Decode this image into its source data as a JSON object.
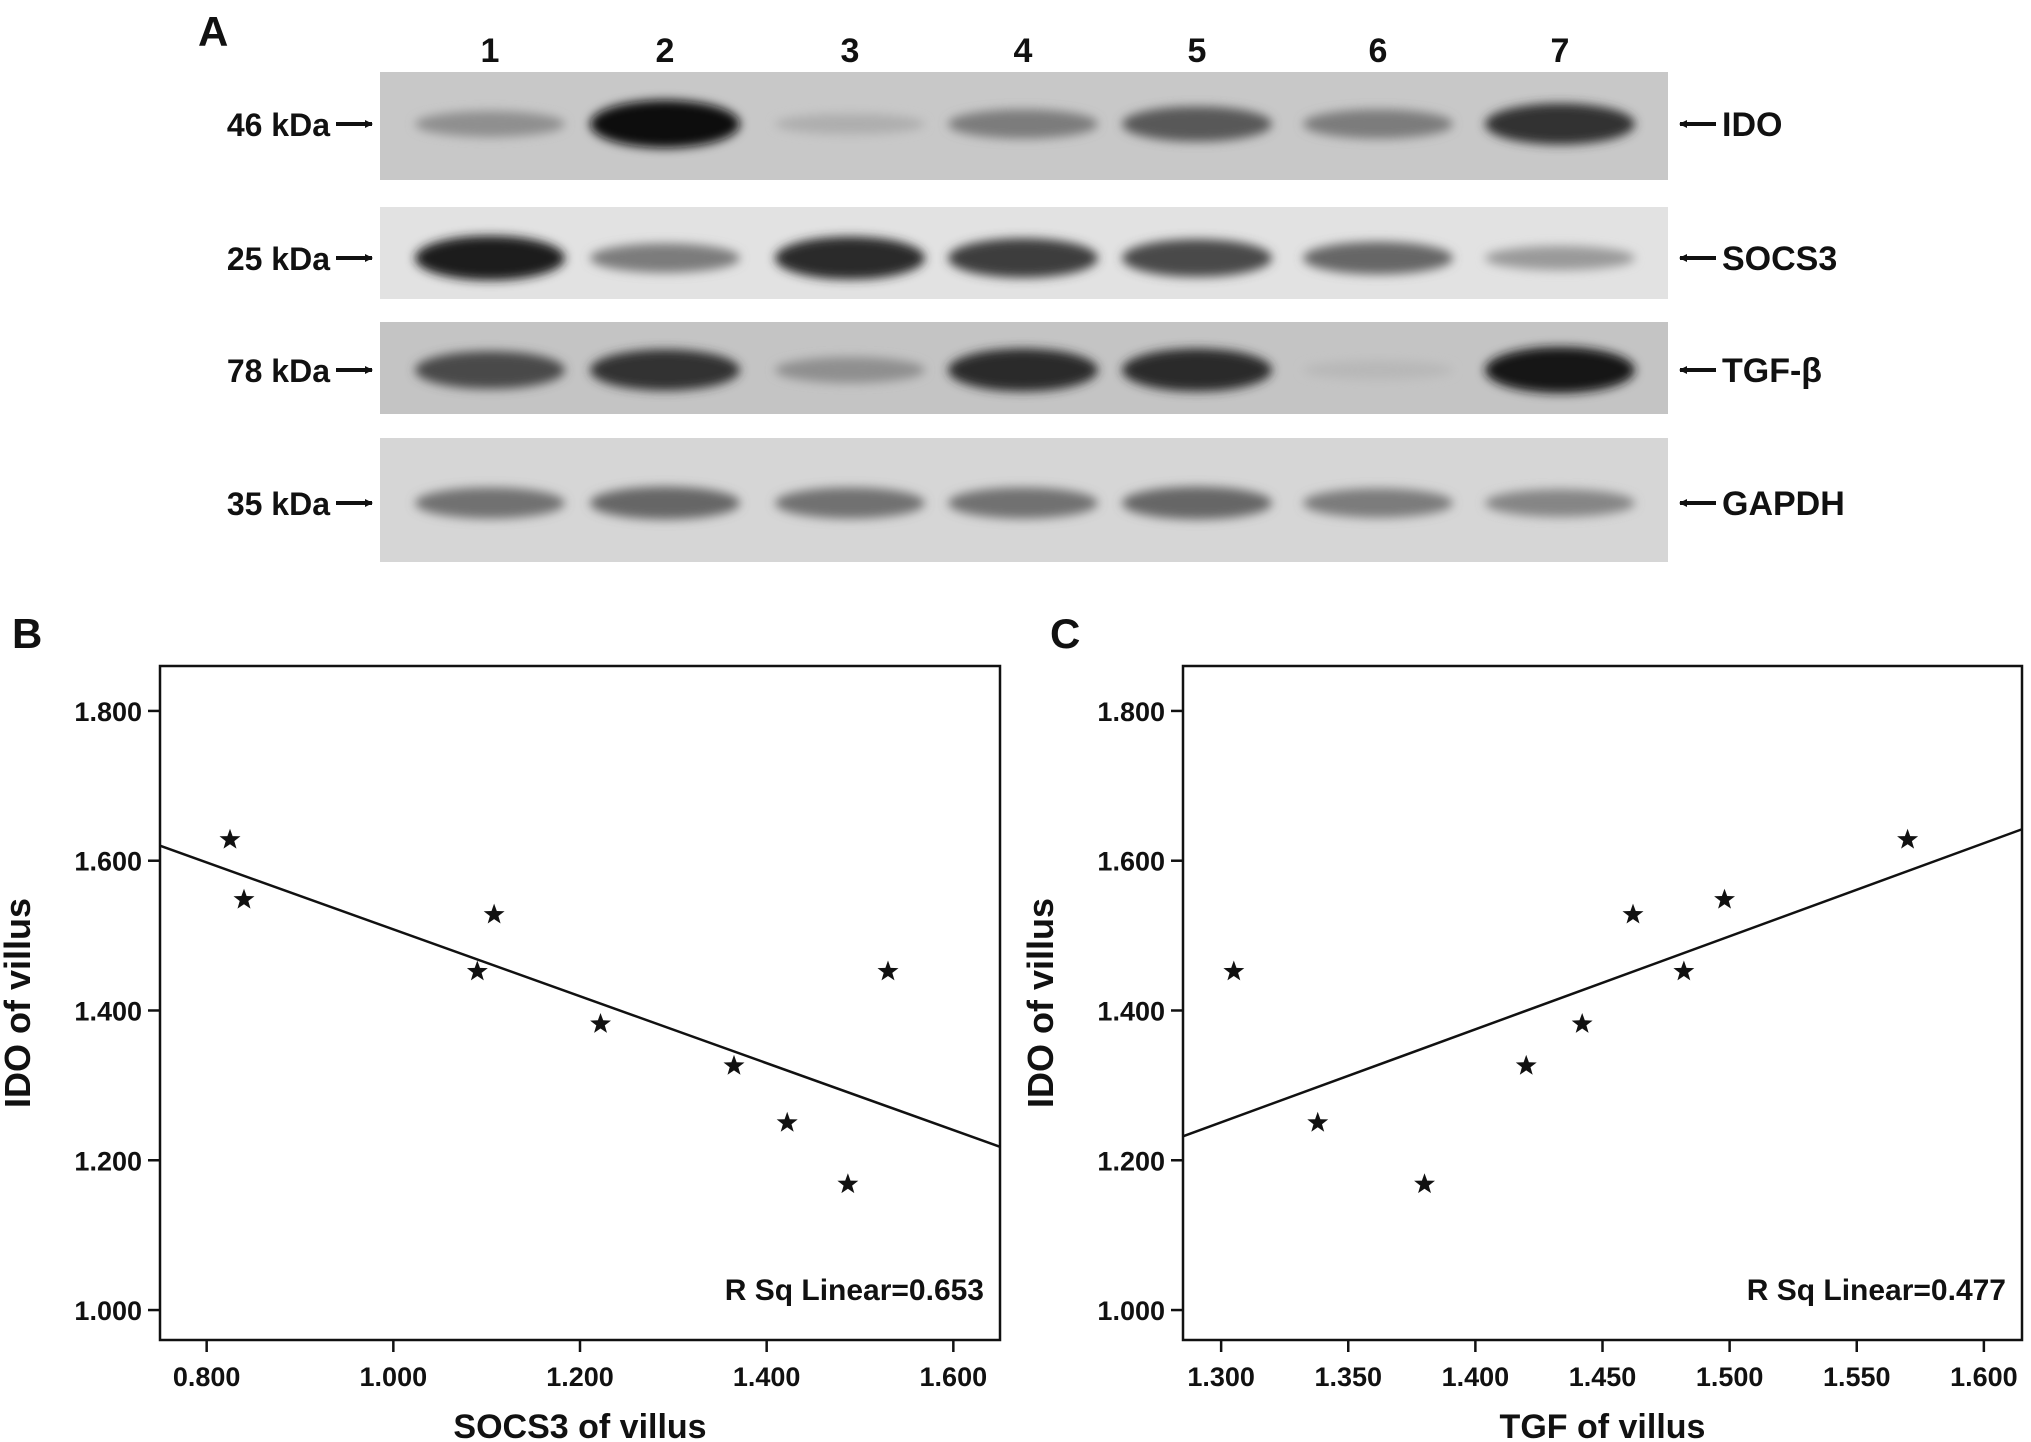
{
  "panel_a": {
    "label": "A",
    "lanes": [
      "1",
      "2",
      "3",
      "4",
      "5",
      "6",
      "7"
    ],
    "blots": [
      {
        "weight": "46 kDa",
        "protein": "IDO",
        "background": "#c8c8c8",
        "bands": [
          0.35,
          1.0,
          0.2,
          0.45,
          0.62,
          0.45,
          0.8
        ]
      },
      {
        "weight": "25 kDa",
        "protein": "SOCS3",
        "background": "#e2e2e2",
        "bands": [
          0.9,
          0.45,
          0.85,
          0.75,
          0.7,
          0.55,
          0.3
        ]
      },
      {
        "weight": "78 kDa",
        "protein": "TGF-β",
        "background": "#c4c4c4",
        "bands": [
          0.7,
          0.8,
          0.35,
          0.85,
          0.85,
          0.15,
          0.95
        ]
      },
      {
        "weight": "35 kDa",
        "protein": "GAPDH",
        "background": "#d6d6d6",
        "bands": [
          0.5,
          0.55,
          0.5,
          0.5,
          0.55,
          0.45,
          0.4
        ]
      }
    ]
  },
  "chart_data": [
    {
      "panel_label": "B",
      "type": "scatter",
      "xlabel": "SOCS3 of villus",
      "ylabel": "IDO of villus",
      "xlim": [
        0.75,
        1.65
      ],
      "ylim": [
        0.96,
        1.86
      ],
      "xticks": [
        "0.800",
        "1.000",
        "1.200",
        "1.400",
        "1.600"
      ],
      "yticks": [
        "1.000",
        "1.200",
        "1.400",
        "1.600",
        "1.800"
      ],
      "xtick_values": [
        0.8,
        1.0,
        1.2,
        1.4,
        1.6
      ],
      "ytick_values": [
        1.0,
        1.2,
        1.4,
        1.6,
        1.8
      ],
      "marker": "star",
      "points": [
        {
          "x": 0.825,
          "y": 1.628
        },
        {
          "x": 0.84,
          "y": 1.548
        },
        {
          "x": 1.09,
          "y": 1.452
        },
        {
          "x": 1.108,
          "y": 1.528
        },
        {
          "x": 1.222,
          "y": 1.382
        },
        {
          "x": 1.365,
          "y": 1.326
        },
        {
          "x": 1.422,
          "y": 1.25
        },
        {
          "x": 1.487,
          "y": 1.168
        },
        {
          "x": 1.53,
          "y": 1.452
        }
      ],
      "fit_line": {
        "x": [
          0.75,
          1.65
        ],
        "y": [
          1.62,
          1.218
        ]
      },
      "annotation": "R Sq Linear=0.653"
    },
    {
      "panel_label": "C",
      "type": "scatter",
      "xlabel": "TGF of villus",
      "ylabel": "IDO of villus",
      "xlim": [
        1.285,
        1.615
      ],
      "ylim": [
        0.96,
        1.86
      ],
      "xticks": [
        "1.300",
        "1.350",
        "1.400",
        "1.450",
        "1.500",
        "1.550",
        "1.600"
      ],
      "yticks": [
        "1.000",
        "1.200",
        "1.400",
        "1.600",
        "1.800"
      ],
      "xtick_values": [
        1.3,
        1.35,
        1.4,
        1.45,
        1.5,
        1.55,
        1.6
      ],
      "ytick_values": [
        1.0,
        1.2,
        1.4,
        1.6,
        1.8
      ],
      "marker": "star",
      "points": [
        {
          "x": 1.305,
          "y": 1.452
        },
        {
          "x": 1.338,
          "y": 1.25
        },
        {
          "x": 1.38,
          "y": 1.168
        },
        {
          "x": 1.42,
          "y": 1.326
        },
        {
          "x": 1.442,
          "y": 1.382
        },
        {
          "x": 1.462,
          "y": 1.528
        },
        {
          "x": 1.482,
          "y": 1.452
        },
        {
          "x": 1.498,
          "y": 1.548
        },
        {
          "x": 1.57,
          "y": 1.628
        }
      ],
      "fit_line": {
        "x": [
          1.285,
          1.615
        ],
        "y": [
          1.232,
          1.642
        ]
      },
      "annotation": "R Sq Linear=0.477"
    }
  ]
}
